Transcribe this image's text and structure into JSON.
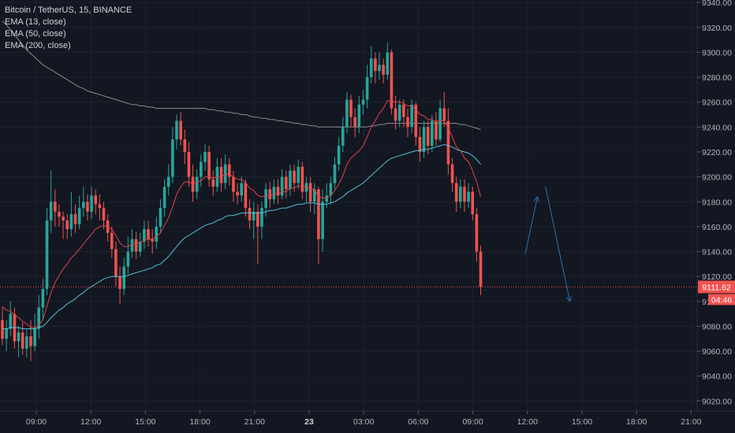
{
  "legend": {
    "symbol_line": "Bitcoin / TetherUS, 15, BINANCE",
    "ema13": "EMA (13, close)",
    "ema50": "EMA (50, close)",
    "ema200": "EMA (200, close)"
  },
  "colors": {
    "background": "#131722",
    "up": "#26a69a",
    "down": "#ef5350",
    "ema13": "#e0434a",
    "ema50": "#4fc3d6",
    "ema200": "#8a8a8a",
    "arrow": "#2f6fb3",
    "last_price": "#ef5350"
  },
  "chart_data": {
    "type": "candlestick",
    "title": "Bitcoin / TetherUS, 15, BINANCE",
    "ylim": [
      9012,
      9342
    ],
    "y_ticks": [
      9020,
      9040,
      9060,
      9080,
      9100,
      9120,
      9140,
      9160,
      9180,
      9200,
      9220,
      9240,
      9260,
      9280,
      9300,
      9320,
      9340
    ],
    "x_ticks": [
      {
        "label": "09:00",
        "bold": false
      },
      {
        "label": "12:00",
        "bold": false
      },
      {
        "label": "15:00",
        "bold": false
      },
      {
        "label": "18:00",
        "bold": false
      },
      {
        "label": "21:00",
        "bold": false
      },
      {
        "label": "23",
        "bold": true
      },
      {
        "label": "03:00",
        "bold": false
      },
      {
        "label": "06:00",
        "bold": false
      },
      {
        "label": "09:00",
        "bold": false
      },
      {
        "label": "12:00",
        "bold": false
      },
      {
        "label": "15:00",
        "bold": false
      },
      {
        "label": "18:00",
        "bold": false
      },
      {
        "label": "21:00",
        "bold": false
      }
    ],
    "last_price": 9111.62,
    "last_price_label": "9111.62",
    "countdown_label": "04:46",
    "candles": [
      [
        9085,
        9070,
        9095,
        9065
      ],
      [
        9070,
        9078,
        9085,
        9060
      ],
      [
        9078,
        9090,
        9100,
        9072
      ],
      [
        9090,
        9068,
        9095,
        9062
      ],
      [
        9068,
        9075,
        9080,
        9055
      ],
      [
        9075,
        9062,
        9083,
        9057
      ],
      [
        9062,
        9072,
        9078,
        9055
      ],
      [
        9072,
        9064,
        9085,
        9052
      ],
      [
        9064,
        9078,
        9090,
        9060
      ],
      [
        9078,
        9095,
        9105,
        9070
      ],
      [
        9095,
        9110,
        9118,
        9085
      ],
      [
        9110,
        9165,
        9175,
        9105
      ],
      [
        9165,
        9180,
        9205,
        9155
      ],
      [
        9180,
        9172,
        9190,
        9160
      ],
      [
        9172,
        9168,
        9178,
        9160
      ],
      [
        9168,
        9165,
        9172,
        9150
      ],
      [
        9165,
        9158,
        9170,
        9150
      ],
      [
        9158,
        9170,
        9188,
        9152
      ],
      [
        9170,
        9162,
        9178,
        9155
      ],
      [
        9162,
        9175,
        9185,
        9158
      ],
      [
        9175,
        9180,
        9192,
        9168
      ],
      [
        9180,
        9172,
        9186,
        9165
      ],
      [
        9172,
        9185,
        9192,
        9166
      ],
      [
        9185,
        9178,
        9190,
        9170
      ],
      [
        9178,
        9175,
        9186,
        9165
      ],
      [
        9175,
        9165,
        9180,
        9158
      ],
      [
        9165,
        9155,
        9170,
        9148
      ],
      [
        9155,
        9142,
        9160,
        9135
      ],
      [
        9142,
        9120,
        9148,
        9112
      ],
      [
        9120,
        9110,
        9128,
        9098
      ],
      [
        9110,
        9128,
        9135,
        9105
      ],
      [
        9128,
        9140,
        9152,
        9122
      ],
      [
        9140,
        9150,
        9158,
        9135
      ],
      [
        9150,
        9140,
        9156,
        9134
      ],
      [
        9140,
        9148,
        9155,
        9136
      ],
      [
        9148,
        9158,
        9165,
        9142
      ],
      [
        9158,
        9150,
        9165,
        9144
      ],
      [
        9150,
        9148,
        9158,
        9138
      ],
      [
        9148,
        9160,
        9168,
        9142
      ],
      [
        9160,
        9175,
        9182,
        9155
      ],
      [
        9175,
        9192,
        9198,
        9168
      ],
      [
        9192,
        9200,
        9210,
        9185
      ],
      [
        9200,
        9230,
        9240,
        9195
      ],
      [
        9230,
        9245,
        9250,
        9222
      ],
      [
        9245,
        9230,
        9252,
        9225
      ],
      [
        9230,
        9220,
        9238,
        9210
      ],
      [
        9220,
        9200,
        9228,
        9192
      ],
      [
        9200,
        9188,
        9210,
        9180
      ],
      [
        9188,
        9200,
        9206,
        9182
      ],
      [
        9200,
        9212,
        9218,
        9192
      ],
      [
        9212,
        9220,
        9226,
        9205
      ],
      [
        9220,
        9198,
        9225,
        9192
      ],
      [
        9198,
        9192,
        9205,
        9185
      ],
      [
        9192,
        9208,
        9215,
        9188
      ],
      [
        9208,
        9195,
        9215,
        9188
      ],
      [
        9195,
        9210,
        9218,
        9190
      ],
      [
        9210,
        9200,
        9215,
        9193
      ],
      [
        9200,
        9188,
        9205,
        9180
      ],
      [
        9188,
        9185,
        9195,
        9178
      ],
      [
        9185,
        9195,
        9200,
        9180
      ],
      [
        9195,
        9175,
        9198,
        9168
      ],
      [
        9175,
        9165,
        9182,
        9158
      ],
      [
        9165,
        9172,
        9180,
        9150
      ],
      [
        9172,
        9160,
        9178,
        9130
      ],
      [
        9160,
        9175,
        9180,
        9150
      ],
      [
        9175,
        9190,
        9195,
        9168
      ],
      [
        9190,
        9182,
        9196,
        9175
      ],
      [
        9182,
        9192,
        9198,
        9178
      ],
      [
        9192,
        9185,
        9198,
        9178
      ],
      [
        9185,
        9200,
        9206,
        9182
      ],
      [
        9200,
        9190,
        9205,
        9183
      ],
      [
        9190,
        9205,
        9210,
        9185
      ],
      [
        9205,
        9195,
        9210,
        9188
      ],
      [
        9195,
        9208,
        9214,
        9190
      ],
      [
        9208,
        9188,
        9212,
        9182
      ],
      [
        9188,
        9195,
        9200,
        9180
      ],
      [
        9195,
        9180,
        9200,
        9172
      ],
      [
        9180,
        9190,
        9195,
        9170
      ],
      [
        9190,
        9150,
        9192,
        9130
      ],
      [
        9150,
        9180,
        9190,
        9140
      ],
      [
        9180,
        9185,
        9195,
        9175
      ],
      [
        9185,
        9195,
        9200,
        9178
      ],
      [
        9195,
        9210,
        9216,
        9190
      ],
      [
        9210,
        9225,
        9232,
        9205
      ],
      [
        9225,
        9240,
        9248,
        9220
      ],
      [
        9240,
        9262,
        9268,
        9235
      ],
      [
        9262,
        9248,
        9266,
        9240
      ],
      [
        9248,
        9240,
        9255,
        9232
      ],
      [
        9240,
        9258,
        9265,
        9235
      ],
      [
        9258,
        9262,
        9270,
        9250
      ],
      [
        9262,
        9280,
        9290,
        9255
      ],
      [
        9280,
        9295,
        9305,
        9275
      ],
      [
        9295,
        9285,
        9300,
        9275
      ],
      [
        9285,
        9290,
        9300,
        9278
      ],
      [
        9290,
        9282,
        9295,
        9275
      ],
      [
        9282,
        9300,
        9308,
        9278
      ],
      [
        9300,
        9255,
        9302,
        9250
      ],
      [
        9255,
        9245,
        9265,
        9238
      ],
      [
        9245,
        9258,
        9262,
        9240
      ],
      [
        9258,
        9248,
        9262,
        9240
      ],
      [
        9248,
        9240,
        9255,
        9232
      ],
      [
        9240,
        9258,
        9262,
        9235
      ],
      [
        9258,
        9232,
        9260,
        9225
      ],
      [
        9232,
        9220,
        9240,
        9212
      ],
      [
        9220,
        9240,
        9245,
        9215
      ],
      [
        9240,
        9225,
        9245,
        9218
      ],
      [
        9225,
        9245,
        9250,
        9220
      ],
      [
        9245,
        9230,
        9252,
        9225
      ],
      [
        9230,
        9255,
        9262,
        9228
      ],
      [
        9255,
        9245,
        9268,
        9240
      ],
      [
        9245,
        9210,
        9255,
        9202
      ],
      [
        9210,
        9195,
        9215,
        9188
      ],
      [
        9195,
        9180,
        9200,
        9172
      ],
      [
        9180,
        9192,
        9198,
        9175
      ],
      [
        9192,
        9180,
        9198,
        9172
      ],
      [
        9180,
        9188,
        9195,
        9175
      ],
      [
        9188,
        9170,
        9192,
        9165
      ],
      [
        9170,
        9140,
        9175,
        9132
      ],
      [
        9140,
        9111.62,
        9145,
        9105
      ]
    ],
    "ema13": [
      9096,
      9093,
      9092,
      9089,
      9087,
      9084,
      9082,
      9079,
      9079,
      9081,
      9085,
      9096,
      9107,
      9115,
      9121,
      9126,
      9130,
      9135,
      9138,
      9142,
      9146,
      9150,
      9154,
      9158,
      9160,
      9161,
      9160,
      9158,
      9153,
      9147,
      9144,
      9144,
      9146,
      9146,
      9147,
      9149,
      9150,
      9150,
      9152,
      9155,
      9161,
      9167,
      9176,
      9186,
      9192,
      9196,
      9196,
      9194,
      9195,
      9197,
      9200,
      9200,
      9199,
      9200,
      9200,
      9202,
      9202,
      9200,
      9198,
      9198,
      9195,
      9191,
      9189,
      9185,
      9184,
      9185,
      9185,
      9186,
      9186,
      9188,
      9188,
      9191,
      9191,
      9193,
      9192,
      9192,
      9190,
      9190,
      9184,
      9183,
      9183,
      9185,
      9189,
      9194,
      9201,
      9210,
      9215,
      9218,
      9221,
      9225,
      9232,
      9240,
      9245,
      9251,
      9255,
      9261,
      9261,
      9260,
      9260,
      9259,
      9257,
      9257,
      9254,
      9250,
      9249,
      9246,
      9246,
      9244,
      9245,
      9245,
      9239,
      9232,
      9224,
      9221,
      9215,
      9212,
      9205,
      9196,
      9184
    ],
    "ema50": [
      9078,
      9078,
      9079,
      9079,
      9079,
      9078,
      9078,
      9078,
      9078,
      9079,
      9080,
      9083,
      9087,
      9090,
      9093,
      9095,
      9098,
      9100,
      9102,
      9105,
      9107,
      9110,
      9112,
      9114,
      9116,
      9118,
      9119,
      9120,
      9120,
      9120,
      9120,
      9121,
      9122,
      9123,
      9124,
      9125,
      9126,
      9127,
      9129,
      9130,
      9133,
      9136,
      9140,
      9144,
      9148,
      9151,
      9153,
      9155,
      9157,
      9159,
      9161,
      9162,
      9163,
      9165,
      9166,
      9168,
      9169,
      9169,
      9170,
      9171,
      9171,
      9171,
      9171,
      9171,
      9171,
      9172,
      9173,
      9173,
      9174,
      9175,
      9175,
      9176,
      9177,
      9178,
      9178,
      9179,
      9179,
      9179,
      9178,
      9178,
      9178,
      9179,
      9180,
      9182,
      9184,
      9187,
      9189,
      9191,
      9193,
      9195,
      9198,
      9201,
      9204,
      9207,
      9210,
      9213,
      9215,
      9216,
      9217,
      9218,
      9219,
      9220,
      9221,
      9221,
      9222,
      9222,
      9223,
      9224,
      9225,
      9226,
      9225,
      9224,
      9222,
      9221,
      9220,
      9219,
      9217,
      9214,
      9210
    ],
    "ema200": [
      9325,
      9322,
      9318,
      9314,
      9310,
      9306,
      9302,
      9299,
      9296,
      9293,
      9290,
      9288,
      9286,
      9284,
      9282,
      9280,
      9278,
      9276,
      9274,
      9272,
      9271,
      9269,
      9268,
      9267,
      9266,
      9265,
      9264,
      9263,
      9262,
      9261,
      9260,
      9259,
      9258,
      9258,
      9257,
      9257,
      9256,
      9256,
      9255,
      9255,
      9255,
      9255,
      9255,
      9255,
      9255,
      9255,
      9255,
      9255,
      9255,
      9255,
      9255,
      9254,
      9254,
      9253,
      9253,
      9252,
      9252,
      9251,
      9251,
      9250,
      9250,
      9249,
      9248,
      9248,
      9247,
      9247,
      9246,
      9246,
      9245,
      9245,
      9244,
      9244,
      9243,
      9243,
      9242,
      9242,
      9241,
      9241,
      9240,
      9240,
      9240,
      9240,
      9240,
      9240,
      9240,
      9240,
      9240,
      9240,
      9240,
      9240,
      9240,
      9241,
      9241,
      9242,
      9242,
      9243,
      9243,
      9243,
      9243,
      9243,
      9243,
      9243,
      9243,
      9243,
      9243,
      9243,
      9243,
      9243,
      9243,
      9243,
      9243,
      9243,
      9243,
      9242,
      9242,
      9241,
      9240,
      9239,
      9238
    ],
    "forecast_arrows": [
      {
        "from_index": 129,
        "from_price": 9138,
        "to_index": 132,
        "to_price": 9184
      },
      {
        "from_index": 134,
        "from_price": 9192,
        "to_index": 140,
        "to_price": 9100
      }
    ]
  }
}
